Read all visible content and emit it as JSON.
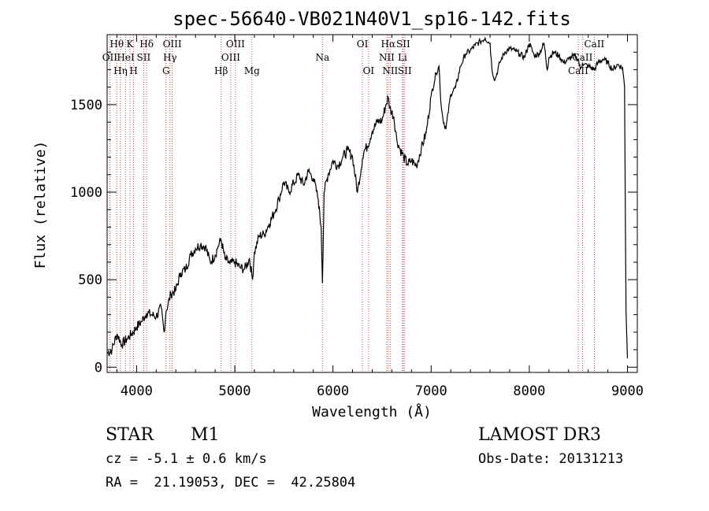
{
  "chart_data": {
    "type": "line",
    "title": "spec-56640-VB021N40V1_sp16-142.fits",
    "xlabel": "Wavelength (Å)",
    "ylabel": "Flux (relative)",
    "xlim": [
      3700,
      9100
    ],
    "ylim": [
      -30,
      1900
    ],
    "xticks": [
      4000,
      5000,
      6000,
      7000,
      8000,
      9000
    ],
    "yticks": [
      0,
      500,
      1000,
      1500
    ],
    "grid": false,
    "series": [
      {
        "name": "flux",
        "color": "#000000",
        "x": [
          3700,
          3750,
          3800,
          3850,
          3900,
          3950,
          4000,
          4050,
          4100,
          4150,
          4200,
          4250,
          4280,
          4300,
          4350,
          4400,
          4450,
          4500,
          4550,
          4600,
          4650,
          4700,
          4750,
          4800,
          4830,
          4860,
          4900,
          4950,
          5000,
          5050,
          5100,
          5150,
          5180,
          5200,
          5250,
          5300,
          5350,
          5400,
          5450,
          5500,
          5550,
          5600,
          5650,
          5700,
          5750,
          5800,
          5850,
          5880,
          5893,
          5910,
          5950,
          6000,
          6050,
          6100,
          6150,
          6200,
          6250,
          6300,
          6320,
          6350,
          6400,
          6450,
          6500,
          6540,
          6563,
          6580,
          6620,
          6650,
          6680,
          6720,
          6760,
          6800,
          6850,
          6900,
          6950,
          7000,
          7050,
          7080,
          7100,
          7120,
          7150,
          7200,
          7250,
          7300,
          7350,
          7400,
          7450,
          7500,
          7550,
          7600,
          7620,
          7650,
          7700,
          7750,
          7800,
          7850,
          7900,
          7950,
          8000,
          8050,
          8100,
          8150,
          8183,
          8200,
          8250,
          8300,
          8350,
          8400,
          8450,
          8498,
          8520,
          8542,
          8560,
          8600,
          8662,
          8700,
          8750,
          8800,
          8850,
          8900,
          8950,
          8970,
          8985,
          9000
        ],
        "y": [
          80,
          100,
          190,
          130,
          160,
          190,
          230,
          260,
          310,
          300,
          290,
          340,
          200,
          320,
          420,
          440,
          540,
          560,
          640,
          680,
          700,
          690,
          600,
          640,
          690,
          730,
          620,
          590,
          600,
          570,
          560,
          620,
          500,
          660,
          750,
          760,
          820,
          880,
          960,
          1060,
          1000,
          1050,
          1100,
          1040,
          1120,
          1080,
          960,
          800,
          480,
          1000,
          1100,
          1180,
          1150,
          1200,
          1240,
          1200,
          1000,
          1190,
          1240,
          1260,
          1350,
          1400,
          1410,
          1500,
          1540,
          1480,
          1430,
          1300,
          1250,
          1200,
          1160,
          1180,
          1150,
          1250,
          1340,
          1550,
          1680,
          1720,
          1510,
          1420,
          1360,
          1560,
          1600,
          1720,
          1790,
          1810,
          1840,
          1860,
          1880,
          1850,
          1700,
          1640,
          1740,
          1800,
          1820,
          1810,
          1790,
          1770,
          1850,
          1780,
          1790,
          1850,
          1700,
          1770,
          1800,
          1780,
          1740,
          1760,
          1780,
          1760,
          1700,
          1740,
          1730,
          1720,
          1700,
          1740,
          1760,
          1740,
          1700,
          1730,
          1710,
          1600,
          320,
          50
        ]
      }
    ],
    "lines": [
      {
        "wave": 3727,
        "label": "OII",
        "row": 2
      },
      {
        "wave": 3798,
        "label": "Hθ",
        "row": 1
      },
      {
        "wave": 3836,
        "label": "Hη",
        "row": 3
      },
      {
        "wave": 3889,
        "label": "HeI",
        "row": 2
      },
      {
        "wave": 3933,
        "label": "K",
        "row": 1
      },
      {
        "wave": 3970,
        "label": "H",
        "row": 3
      },
      {
        "wave": 4072,
        "label": "SII",
        "row": 2
      },
      {
        "wave": 4102,
        "label": "Hδ",
        "row": 1
      },
      {
        "wave": 4300,
        "label": "G",
        "row": 3
      },
      {
        "wave": 4340,
        "label": "Hγ",
        "row": 2
      },
      {
        "wave": 4363,
        "label": "OIII",
        "row": 1
      },
      {
        "wave": 4861,
        "label": "Hβ",
        "row": 3
      },
      {
        "wave": 4959,
        "label": "OIII",
        "row": 2
      },
      {
        "wave": 5007,
        "label": "OIII",
        "row": 1
      },
      {
        "wave": 5175,
        "label": "Mg",
        "row": 3
      },
      {
        "wave": 5893,
        "label": "Na",
        "row": 2
      },
      {
        "wave": 6300,
        "label": "OI",
        "row": 1
      },
      {
        "wave": 6363,
        "label": "OI",
        "row": 3
      },
      {
        "wave": 6548,
        "label": "NII",
        "row": 2
      },
      {
        "wave": 6563,
        "label": "Hα",
        "row": 1
      },
      {
        "wave": 6583,
        "label": "NII",
        "row": 3
      },
      {
        "wave": 6708,
        "label": "Li",
        "row": 2
      },
      {
        "wave": 6716,
        "label": "SII",
        "row": 1
      },
      {
        "wave": 6731,
        "label": "SII",
        "row": 3
      },
      {
        "wave": 8498,
        "label": "CaII",
        "row": 3
      },
      {
        "wave": 8542,
        "label": "CaII",
        "row": 2
      },
      {
        "wave": 8662,
        "label": "CaII",
        "row": 1
      }
    ]
  },
  "info": {
    "object": "STAR",
    "subclass": "M1",
    "survey": "LAMOST DR3",
    "cz": "cz = -5.1 ± 0.6 km/s",
    "obs_date": "Obs-Date: 20131213",
    "radec": "RA =  21.19053, DEC =  42.25804"
  }
}
